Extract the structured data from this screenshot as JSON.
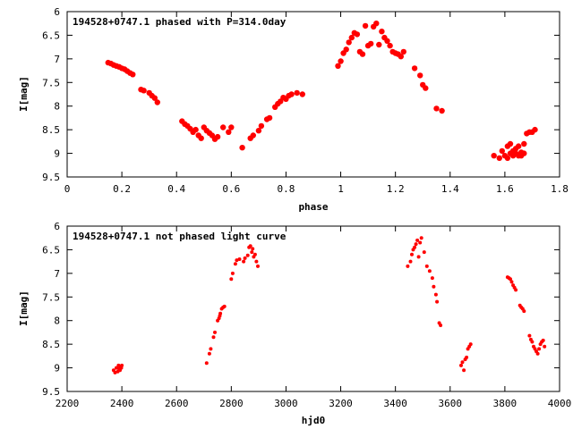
{
  "chart_data": [
    {
      "type": "scatter",
      "title": "194528+0747.1 phased with P=314.0day",
      "xlabel": "phase",
      "ylabel": "I[mag]",
      "xlim": [
        0,
        1.8
      ],
      "ylim": [
        9.5,
        6
      ],
      "y_inverted": true,
      "grid": false,
      "marker_color": "#ff0000",
      "xticks": [
        "0",
        "0.2",
        "0.4",
        "0.6",
        "0.8",
        "1",
        "1.2",
        "1.4",
        "1.6",
        "1.8"
      ],
      "yticks": [
        "6",
        "6.5",
        "7",
        "7.5",
        "8",
        "8.5",
        "9",
        "9.5"
      ],
      "points": [
        [
          0.15,
          7.08
        ],
        [
          0.16,
          7.1
        ],
        [
          0.17,
          7.13
        ],
        [
          0.18,
          7.15
        ],
        [
          0.19,
          7.17
        ],
        [
          0.2,
          7.2
        ],
        [
          0.21,
          7.22
        ],
        [
          0.22,
          7.26
        ],
        [
          0.23,
          7.3
        ],
        [
          0.24,
          7.33
        ],
        [
          0.27,
          7.65
        ],
        [
          0.28,
          7.67
        ],
        [
          0.3,
          7.72
        ],
        [
          0.31,
          7.78
        ],
        [
          0.32,
          7.83
        ],
        [
          0.33,
          7.92
        ],
        [
          0.42,
          8.32
        ],
        [
          0.43,
          8.38
        ],
        [
          0.44,
          8.42
        ],
        [
          0.45,
          8.48
        ],
        [
          0.46,
          8.55
        ],
        [
          0.47,
          8.5
        ],
        [
          0.48,
          8.62
        ],
        [
          0.49,
          8.68
        ],
        [
          0.5,
          8.45
        ],
        [
          0.51,
          8.52
        ],
        [
          0.52,
          8.57
        ],
        [
          0.53,
          8.62
        ],
        [
          0.54,
          8.7
        ],
        [
          0.55,
          8.65
        ],
        [
          0.57,
          8.45
        ],
        [
          0.59,
          8.55
        ],
        [
          0.6,
          8.45
        ],
        [
          0.64,
          8.88
        ],
        [
          0.67,
          8.68
        ],
        [
          0.68,
          8.62
        ],
        [
          0.7,
          8.52
        ],
        [
          0.71,
          8.42
        ],
        [
          0.73,
          8.28
        ],
        [
          0.74,
          8.25
        ],
        [
          0.76,
          8.02
        ],
        [
          0.77,
          7.95
        ],
        [
          0.78,
          7.9
        ],
        [
          0.79,
          7.82
        ],
        [
          0.8,
          7.85
        ],
        [
          0.81,
          7.78
        ],
        [
          0.82,
          7.75
        ],
        [
          0.84,
          7.72
        ],
        [
          0.86,
          7.75
        ],
        [
          0.99,
          7.15
        ],
        [
          1.0,
          7.05
        ],
        [
          1.01,
          6.88
        ],
        [
          1.02,
          6.8
        ],
        [
          1.03,
          6.65
        ],
        [
          1.04,
          6.55
        ],
        [
          1.05,
          6.45
        ],
        [
          1.06,
          6.48
        ],
        [
          1.07,
          6.85
        ],
        [
          1.08,
          6.9
        ],
        [
          1.09,
          6.3
        ],
        [
          1.1,
          6.72
        ],
        [
          1.11,
          6.68
        ],
        [
          1.12,
          6.32
        ],
        [
          1.13,
          6.25
        ],
        [
          1.14,
          6.7
        ],
        [
          1.15,
          6.42
        ],
        [
          1.16,
          6.55
        ],
        [
          1.17,
          6.62
        ],
        [
          1.18,
          6.72
        ],
        [
          1.19,
          6.85
        ],
        [
          1.2,
          6.88
        ],
        [
          1.21,
          6.9
        ],
        [
          1.22,
          6.95
        ],
        [
          1.23,
          6.85
        ],
        [
          1.27,
          7.2
        ],
        [
          1.29,
          7.35
        ],
        [
          1.3,
          7.55
        ],
        [
          1.31,
          7.62
        ],
        [
          1.35,
          8.05
        ],
        [
          1.37,
          8.1
        ],
        [
          1.56,
          9.05
        ],
        [
          1.58,
          9.1
        ],
        [
          1.59,
          8.95
        ],
        [
          1.6,
          9.05
        ],
        [
          1.61,
          8.85
        ],
        [
          1.61,
          9.1
        ],
        [
          1.62,
          8.8
        ],
        [
          1.62,
          9.0
        ],
        [
          1.63,
          8.95
        ],
        [
          1.63,
          9.05
        ],
        [
          1.64,
          8.9
        ],
        [
          1.64,
          9.0
        ],
        [
          1.65,
          8.85
        ],
        [
          1.65,
          9.05
        ],
        [
          1.66,
          8.98
        ],
        [
          1.66,
          9.05
        ],
        [
          1.67,
          8.8
        ],
        [
          1.67,
          9.0
        ],
        [
          1.68,
          8.58
        ],
        [
          1.69,
          8.55
        ],
        [
          1.7,
          8.55
        ],
        [
          1.71,
          8.5
        ]
      ]
    },
    {
      "type": "scatter",
      "title": "194528+0747.1 not phased light curve",
      "xlabel": "hjd0",
      "ylabel": "I[mag]",
      "xlim": [
        2200,
        4000
      ],
      "ylim": [
        9.5,
        6
      ],
      "y_inverted": true,
      "grid": false,
      "marker_color": "#ff0000",
      "xticks": [
        "2200",
        "2400",
        "2600",
        "2800",
        "3000",
        "3200",
        "3400",
        "3600",
        "3800",
        "4000"
      ],
      "yticks": [
        "6",
        "6.5",
        "7",
        "7.5",
        "8",
        "8.5",
        "9",
        "9.5"
      ],
      "points": [
        [
          2370,
          9.05
        ],
        [
          2375,
          9.1
        ],
        [
          2380,
          9.0
        ],
        [
          2385,
          9.08
        ],
        [
          2388,
          8.95
        ],
        [
          2390,
          9.02
        ],
        [
          2393,
          9.05
        ],
        [
          2395,
          8.98
        ],
        [
          2398,
          9.0
        ],
        [
          2400,
          8.95
        ],
        [
          2710,
          8.9
        ],
        [
          2720,
          8.7
        ],
        [
          2725,
          8.6
        ],
        [
          2735,
          8.35
        ],
        [
          2740,
          8.25
        ],
        [
          2750,
          8.0
        ],
        [
          2755,
          7.95
        ],
        [
          2758,
          7.9
        ],
        [
          2760,
          7.85
        ],
        [
          2765,
          7.75
        ],
        [
          2770,
          7.72
        ],
        [
          2775,
          7.7
        ],
        [
          2800,
          7.12
        ],
        [
          2805,
          7.0
        ],
        [
          2815,
          6.8
        ],
        [
          2820,
          6.72
        ],
        [
          2830,
          6.7
        ],
        [
          2845,
          6.75
        ],
        [
          2850,
          6.68
        ],
        [
          2860,
          6.62
        ],
        [
          2865,
          6.45
        ],
        [
          2870,
          6.42
        ],
        [
          2875,
          6.55
        ],
        [
          2878,
          6.48
        ],
        [
          2882,
          6.65
        ],
        [
          2887,
          6.6
        ],
        [
          2892,
          6.75
        ],
        [
          2897,
          6.85
        ],
        [
          3445,
          6.85
        ],
        [
          3455,
          6.75
        ],
        [
          3460,
          6.6
        ],
        [
          3465,
          6.5
        ],
        [
          3470,
          6.45
        ],
        [
          3475,
          6.38
        ],
        [
          3480,
          6.3
        ],
        [
          3485,
          6.65
        ],
        [
          3490,
          6.35
        ],
        [
          3495,
          6.25
        ],
        [
          3505,
          6.55
        ],
        [
          3515,
          6.85
        ],
        [
          3525,
          6.95
        ],
        [
          3535,
          7.1
        ],
        [
          3540,
          7.28
        ],
        [
          3548,
          7.45
        ],
        [
          3552,
          7.6
        ],
        [
          3560,
          8.05
        ],
        [
          3565,
          8.1
        ],
        [
          3640,
          8.95
        ],
        [
          3645,
          8.88
        ],
        [
          3650,
          9.05
        ],
        [
          3655,
          8.82
        ],
        [
          3660,
          8.78
        ],
        [
          3665,
          8.6
        ],
        [
          3670,
          8.55
        ],
        [
          3675,
          8.5
        ],
        [
          3810,
          7.08
        ],
        [
          3815,
          7.1
        ],
        [
          3820,
          7.12
        ],
        [
          3825,
          7.18
        ],
        [
          3830,
          7.25
        ],
        [
          3835,
          7.3
        ],
        [
          3840,
          7.35
        ],
        [
          3855,
          7.68
        ],
        [
          3860,
          7.72
        ],
        [
          3865,
          7.75
        ],
        [
          3870,
          7.8
        ],
        [
          3890,
          8.32
        ],
        [
          3895,
          8.4
        ],
        [
          3900,
          8.45
        ],
        [
          3905,
          8.55
        ],
        [
          3910,
          8.6
        ],
        [
          3915,
          8.65
        ],
        [
          3920,
          8.7
        ],
        [
          3925,
          8.6
        ],
        [
          3930,
          8.5
        ],
        [
          3935,
          8.45
        ],
        [
          3940,
          8.42
        ],
        [
          3945,
          8.55
        ]
      ]
    }
  ]
}
